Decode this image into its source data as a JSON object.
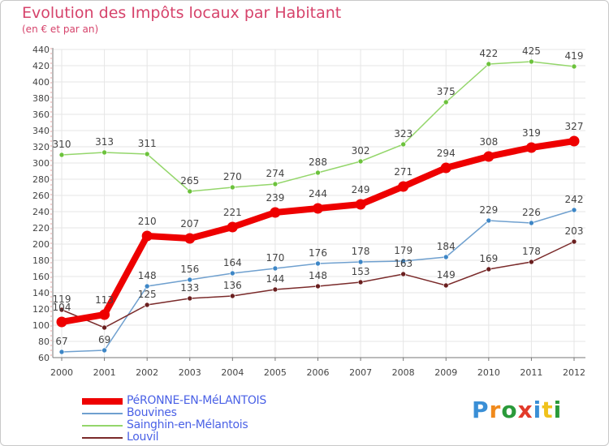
{
  "header": {
    "title": "Evolution des Impôts locaux par Habitant",
    "subtitle": "(en € et par an)"
  },
  "logo": {
    "text": "Proxiti",
    "colors": [
      "#3a8fd6",
      "#f08a1c",
      "#2a9a3a",
      "#e23a2a",
      "#3a8fd6",
      "#f0c21c",
      "#2a9a3a"
    ]
  },
  "colors": {
    "axis": "#777777",
    "grid": "#e6e6e6",
    "label": "#444444",
    "title": "#d6436b",
    "legend_text": "#4a61e6"
  },
  "chart_data": {
    "type": "line",
    "title": "Evolution des Impôts locaux par Habitant",
    "subtitle": "(en € et par an)",
    "xlabel": "",
    "ylabel": "",
    "x": [
      "2000",
      "2001",
      "2002",
      "2003",
      "2004",
      "2005",
      "2006",
      "2007",
      "2008",
      "2009",
      "2010",
      "2011",
      "2012"
    ],
    "ylim": [
      60,
      440
    ],
    "yticks": [
      60,
      80,
      100,
      120,
      140,
      160,
      180,
      200,
      220,
      240,
      260,
      280,
      300,
      320,
      340,
      360,
      380,
      400,
      420,
      440
    ],
    "grid": true,
    "legend": "bottom-left",
    "series": [
      {
        "name": "PéRONNE-EN-MéLANTOIS",
        "color": "#ee0000",
        "marker_color": "#ee0000",
        "emphasis": true,
        "values": [
          104,
          113,
          210,
          207,
          221,
          239,
          244,
          249,
          271,
          294,
          308,
          319,
          327
        ],
        "labels": [
          "104",
          "113",
          "210",
          "207",
          "221",
          "239",
          "244",
          "249",
          "271",
          "294",
          "308",
          "319",
          "327"
        ]
      },
      {
        "name": "Bouvines",
        "color": "#6fa0cf",
        "marker_color": "#3d86c6",
        "emphasis": false,
        "values": [
          67,
          69,
          148,
          156,
          164,
          170,
          176,
          178,
          179,
          184,
          229,
          226,
          242
        ],
        "labels": [
          "67",
          "69",
          "148",
          "156",
          "164",
          "170",
          "176",
          "178",
          "179",
          "184",
          "229",
          "226",
          "242"
        ]
      },
      {
        "name": "Sainghin-en-Mélantois",
        "color": "#94d66b",
        "marker_color": "#6cc23c",
        "emphasis": false,
        "values": [
          310,
          313,
          311,
          265,
          270,
          274,
          288,
          302,
          323,
          375,
          422,
          425,
          419
        ],
        "labels": [
          "310",
          "313",
          "311",
          "265",
          "270",
          "274",
          "288",
          "302",
          "323",
          "375",
          "422",
          "425",
          "419"
        ]
      },
      {
        "name": "Louvil",
        "color": "#7a2a2a",
        "marker_color": "#6a1f1f",
        "emphasis": false,
        "values": [
          119,
          97,
          125,
          133,
          136,
          144,
          148,
          153,
          163,
          149,
          169,
          178,
          203
        ],
        "labels": [
          "119",
          "",
          "125",
          "133",
          "136",
          "144",
          "148",
          "153",
          "163",
          "149",
          "169",
          "178",
          "203"
        ]
      }
    ]
  }
}
